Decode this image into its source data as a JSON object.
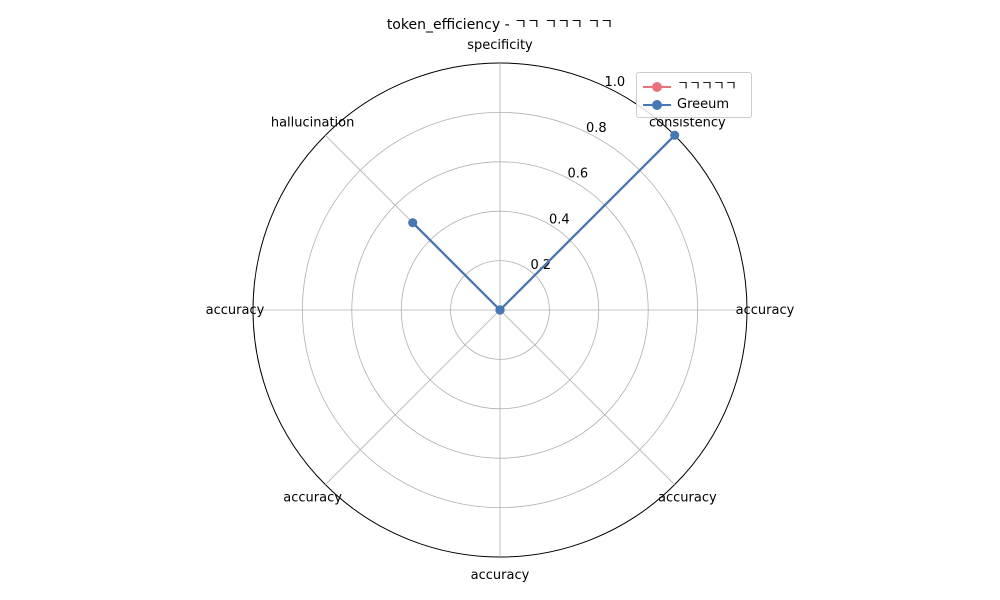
{
  "chart_data": {
    "type": "radar",
    "title": "token_efficiency - ㄱㄱ ㄱㄱㄱ ㄱㄱ",
    "axes": [
      "specificity",
      "consistency",
      "accuracy",
      "accuracy",
      "accuracy",
      "accuracy",
      "accuracy",
      "hallucination"
    ],
    "rlim": [
      0,
      1.0
    ],
    "r_ticks": [
      0.2,
      0.4,
      0.6,
      0.8,
      1.0
    ],
    "r_tick_labels": [
      "0.2",
      "0.4",
      "0.6",
      "0.8",
      "1.0"
    ],
    "grid": true,
    "legend_position": "top-right",
    "series": [
      {
        "name": "ㄱㄱㄱㄱㄱ",
        "color": "#e8737d",
        "values": [
          0.0,
          1.0,
          0.0,
          0.0,
          0.0,
          0.0,
          0.0,
          0.5
        ]
      },
      {
        "name": "Greeum",
        "color": "#4479b3",
        "values": [
          0.0,
          1.0,
          0.0,
          0.0,
          0.0,
          0.0,
          0.0,
          0.5
        ]
      }
    ]
  }
}
